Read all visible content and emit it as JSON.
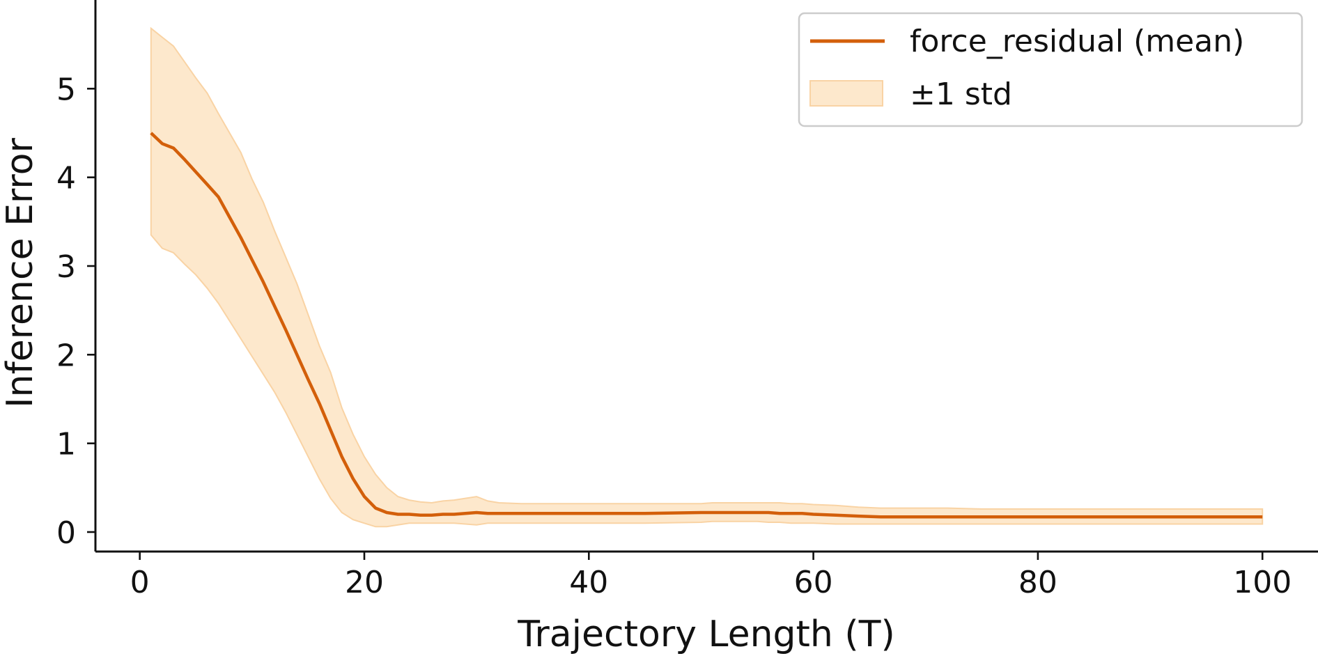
{
  "chart_data": {
    "type": "line",
    "title": "",
    "xlabel": "Trajectory Length (T)",
    "ylabel": "Inference Error",
    "xlim": [
      -3.95,
      104.95
    ],
    "ylim": [
      -0.22,
      6.0
    ],
    "xticks": [
      0,
      20,
      40,
      60,
      80,
      100
    ],
    "xtick_labels": [
      "0",
      "20",
      "40",
      "60",
      "80",
      "100"
    ],
    "yticks": [
      0,
      1,
      2,
      3,
      4,
      5
    ],
    "ytick_labels": [
      "0",
      "1",
      "2",
      "3",
      "4",
      "5"
    ],
    "grid": false,
    "legend_position": "top-right",
    "colors": {
      "mean": "#d35f0a",
      "band_fill": "#fde8cc",
      "band_edge": "#f9d3a4"
    },
    "series": [
      {
        "name": "force_residual (mean)",
        "kind": "line",
        "x": [
          1,
          2,
          3,
          4,
          5,
          6,
          7,
          8,
          9,
          10,
          11,
          12,
          13,
          14,
          15,
          16,
          17,
          18,
          19,
          20,
          21,
          22,
          23,
          24,
          25,
          26,
          27,
          28,
          29,
          30,
          31,
          32,
          33,
          34,
          35,
          36,
          37,
          38,
          39,
          40,
          45,
          50,
          51,
          52,
          53,
          54,
          55,
          56,
          57,
          58,
          59,
          60,
          62,
          64,
          66,
          68,
          70,
          72,
          75,
          80,
          85,
          90,
          95,
          100
        ],
        "y": [
          4.5,
          4.38,
          4.33,
          4.2,
          4.06,
          3.92,
          3.78,
          3.55,
          3.32,
          3.07,
          2.82,
          2.55,
          2.28,
          2.0,
          1.72,
          1.45,
          1.15,
          0.85,
          0.6,
          0.4,
          0.27,
          0.22,
          0.2,
          0.2,
          0.19,
          0.19,
          0.2,
          0.2,
          0.21,
          0.22,
          0.21,
          0.21,
          0.21,
          0.21,
          0.21,
          0.21,
          0.21,
          0.21,
          0.21,
          0.21,
          0.21,
          0.22,
          0.22,
          0.22,
          0.22,
          0.22,
          0.22,
          0.22,
          0.21,
          0.21,
          0.21,
          0.2,
          0.19,
          0.18,
          0.17,
          0.17,
          0.17,
          0.17,
          0.17,
          0.17,
          0.17,
          0.17,
          0.17,
          0.17
        ]
      },
      {
        "name": "±1 std",
        "kind": "band",
        "x": [
          1,
          2,
          3,
          4,
          5,
          6,
          7,
          8,
          9,
          10,
          11,
          12,
          13,
          14,
          15,
          16,
          17,
          18,
          19,
          20,
          21,
          22,
          23,
          24,
          25,
          26,
          27,
          28,
          29,
          30,
          31,
          32,
          34,
          36,
          38,
          40,
          45,
          50,
          51,
          52,
          53,
          54,
          55,
          56,
          57,
          58,
          59,
          60,
          62,
          64,
          66,
          68,
          70,
          72,
          75,
          80,
          85,
          90,
          95,
          100
        ],
        "lower": [
          3.35,
          3.2,
          3.15,
          3.02,
          2.9,
          2.75,
          2.58,
          2.38,
          2.18,
          1.98,
          1.78,
          1.58,
          1.35,
          1.1,
          0.85,
          0.6,
          0.38,
          0.22,
          0.14,
          0.1,
          0.06,
          0.06,
          0.08,
          0.1,
          0.1,
          0.1,
          0.1,
          0.1,
          0.09,
          0.08,
          0.1,
          0.1,
          0.1,
          0.1,
          0.1,
          0.1,
          0.1,
          0.11,
          0.12,
          0.12,
          0.12,
          0.12,
          0.12,
          0.11,
          0.11,
          0.1,
          0.1,
          0.1,
          0.09,
          0.09,
          0.09,
          0.09,
          0.09,
          0.09,
          0.09,
          0.09,
          0.09,
          0.09,
          0.09,
          0.09
        ],
        "upper": [
          5.68,
          5.58,
          5.48,
          5.3,
          5.12,
          4.95,
          4.72,
          4.5,
          4.28,
          3.98,
          3.72,
          3.4,
          3.1,
          2.8,
          2.45,
          2.1,
          1.8,
          1.4,
          1.1,
          0.85,
          0.65,
          0.5,
          0.4,
          0.36,
          0.34,
          0.33,
          0.35,
          0.36,
          0.38,
          0.4,
          0.35,
          0.33,
          0.32,
          0.32,
          0.32,
          0.32,
          0.32,
          0.32,
          0.33,
          0.33,
          0.33,
          0.33,
          0.33,
          0.33,
          0.33,
          0.32,
          0.32,
          0.31,
          0.3,
          0.28,
          0.27,
          0.27,
          0.27,
          0.27,
          0.26,
          0.26,
          0.26,
          0.26,
          0.26,
          0.26
        ]
      }
    ]
  }
}
